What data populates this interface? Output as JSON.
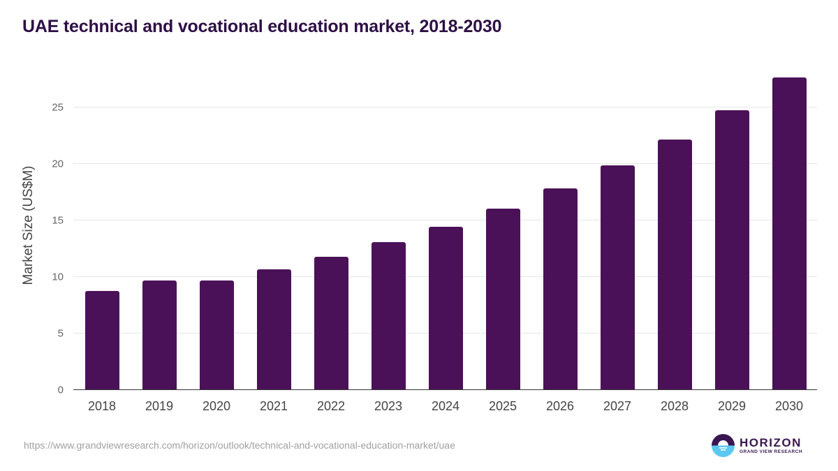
{
  "title": "UAE technical and vocational education market, 2018-2030",
  "source_url": "https://www.grandviewresearch.com/horizon/outlook/technical-and-vocational-education-market/uae",
  "logo": {
    "name": "HORIZON",
    "subtitle": "GRAND VIEW RESEARCH",
    "icon": "horizon-sunset-icon",
    "colors": {
      "dark": "#3a1650",
      "light": "#5bc8f0"
    }
  },
  "colors": {
    "bar": "#4b1158",
    "title": "#2d0f45",
    "grid": "#e6e6e6"
  },
  "chart_data": {
    "type": "bar",
    "title": "UAE technical and vocational education market, 2018-2030",
    "xlabel": "",
    "ylabel": "Market Size (US$M)",
    "categories": [
      "2018",
      "2019",
      "2020",
      "2021",
      "2022",
      "2023",
      "2024",
      "2025",
      "2026",
      "2027",
      "2028",
      "2029",
      "2030"
    ],
    "values": [
      8.7,
      9.6,
      9.6,
      10.6,
      11.7,
      13.0,
      14.4,
      16.0,
      17.8,
      19.8,
      22.1,
      24.7,
      27.6
    ],
    "yticks": [
      "0",
      "5",
      "10",
      "15",
      "20",
      "25"
    ],
    "ylim": [
      0,
      28.3
    ],
    "grid": true,
    "legend": null
  }
}
